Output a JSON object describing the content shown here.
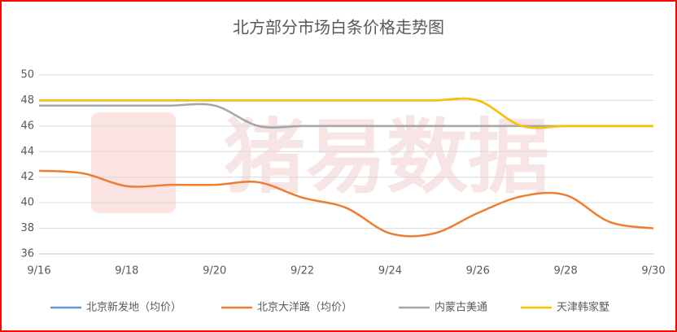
{
  "chart_data": {
    "type": "line",
    "title": "北方部分市场白条价格走势图",
    "watermark": "猪易数据",
    "categories": [
      "9/16",
      null,
      "9/18",
      null,
      "9/20",
      null,
      "9/22",
      null,
      "9/24",
      null,
      "9/26",
      null,
      "9/28",
      null,
      "9/30"
    ],
    "series": [
      {
        "name": "北京新发地（均价）",
        "color": "#5b9bd5",
        "values": [
          48,
          48,
          48,
          48,
          48,
          48,
          48,
          48,
          48,
          48,
          48,
          46,
          46,
          46,
          46
        ]
      },
      {
        "name": "北京大洋路（均价）",
        "color": "#ed7d31",
        "values": [
          42.5,
          42.3,
          41.3,
          41.4,
          41.4,
          41.6,
          40.4,
          39.6,
          37.6,
          37.6,
          39.2,
          40.5,
          40.6,
          38.5,
          38.0
        ]
      },
      {
        "name": "内蒙古美通",
        "color": "#a5a5a5",
        "values": [
          47.6,
          47.6,
          47.6,
          47.6,
          47.6,
          46,
          46,
          46,
          46,
          46,
          46,
          46,
          46,
          46,
          46
        ]
      },
      {
        "name": "天津韩家墅",
        "color": "#ffc000",
        "values": [
          48,
          48,
          48,
          48,
          48,
          48,
          48,
          48,
          48,
          48,
          48,
          46,
          46,
          46,
          46
        ]
      }
    ],
    "ylim": [
      36,
      50
    ],
    "yticks": [
      36,
      38,
      40,
      42,
      44,
      46,
      48,
      50
    ],
    "grid": true,
    "legend": "bottom"
  }
}
